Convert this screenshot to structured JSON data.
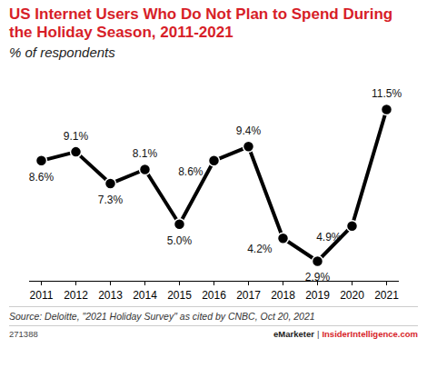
{
  "chart_data": {
    "type": "line",
    "title": "US Internet Users Who Do Not Plan to Spend During the Holiday Season, 2011-2021",
    "subtitle": "% of respondents",
    "categories": [
      "2011",
      "2012",
      "2013",
      "2014",
      "2015",
      "2016",
      "2017",
      "2018",
      "2019",
      "2020",
      "2021"
    ],
    "values": [
      8.6,
      9.1,
      7.3,
      8.1,
      5.0,
      8.6,
      9.4,
      4.2,
      2.9,
      4.9,
      11.5
    ],
    "value_labels": [
      "8.6%",
      "9.1%",
      "7.3%",
      "8.1%",
      "5.0%",
      "8.6%",
      "9.4%",
      "4.2%",
      "2.9%",
      "4.9%",
      "11.5%"
    ],
    "color": "#000000",
    "marker": "circle",
    "data_labels": true,
    "tick_labels": "x",
    "grid": false,
    "source": "Source: Deloitte, \"2021 Holiday Survey\" as cited by CNBC, Oct 20, 2021",
    "chart_id": "271388",
    "credit": [
      "eMarketer",
      "|",
      "InsiderIntelligence.com"
    ]
  }
}
